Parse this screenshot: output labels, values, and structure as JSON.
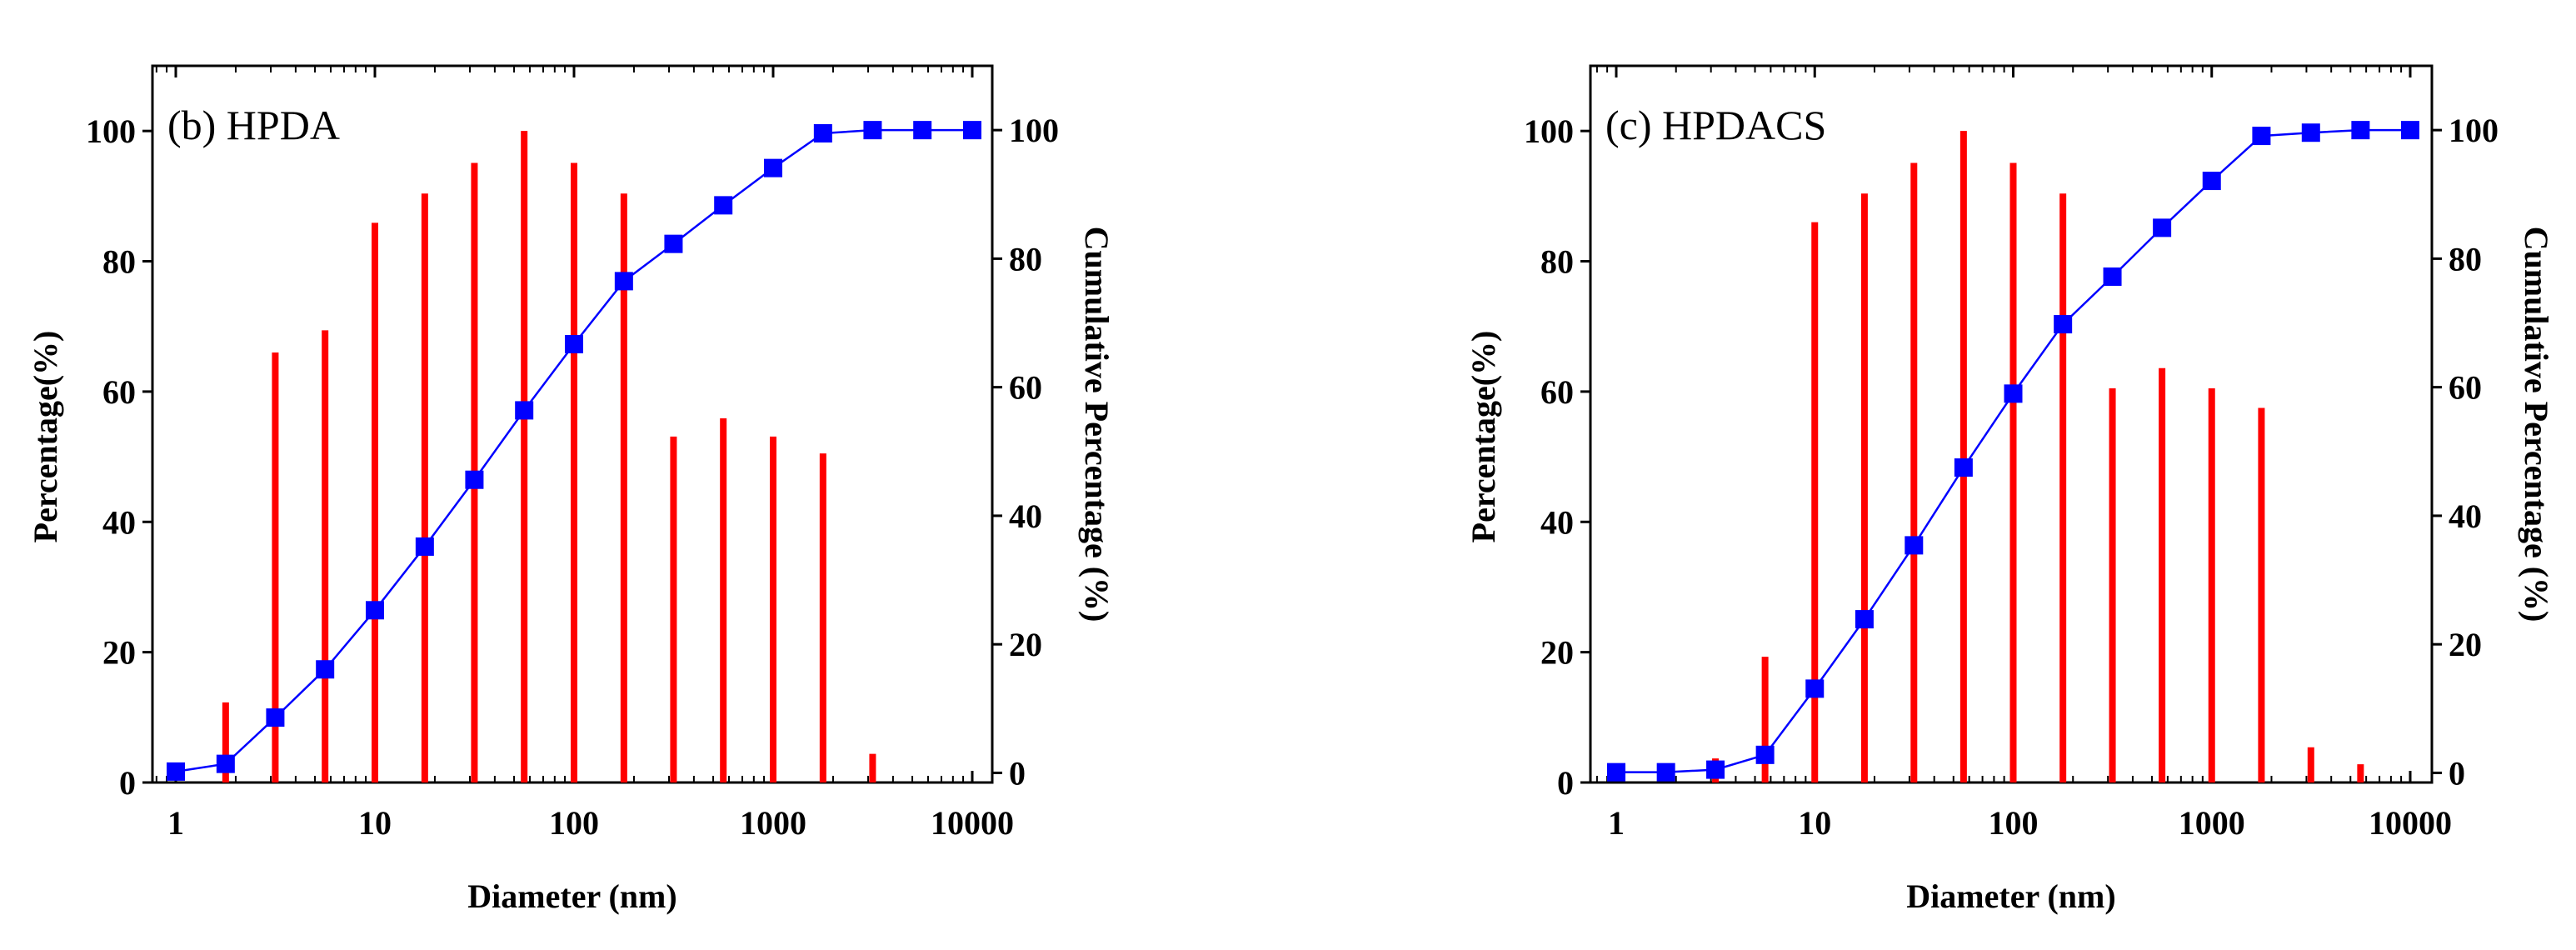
{
  "chart_data": [
    {
      "type": "bar+line",
      "title": "(b) HPDA",
      "xlabel": "Diameter (nm)",
      "ylabel": "Percentage(%)",
      "y2label": "Cumulative Percentage (%)",
      "xscale": "log",
      "xlim": [
        0.8,
        13000
      ],
      "ylim": [
        0,
        110
      ],
      "y2lim": [
        -1.5,
        110
      ],
      "xticks": [
        "1",
        "10",
        "100",
        "1000",
        "10000"
      ],
      "yticks": [
        "0",
        "20",
        "40",
        "60",
        "80",
        "100"
      ],
      "y2ticks": [
        "0",
        "20",
        "40",
        "60",
        "80",
        "100"
      ],
      "colors": {
        "bars": "#ff0000",
        "cumulative": "#0000ff"
      },
      "bars": {
        "x": [
          1.78,
          3.16,
          5.62,
          10,
          17.8,
          31.6,
          56.2,
          100,
          178,
          316,
          562,
          1000,
          1780,
          3160
        ],
        "values": [
          12.3,
          66,
          69.4,
          85.9,
          90.4,
          95.1,
          100,
          95.1,
          90.4,
          53.1,
          55.9,
          53.1,
          50.5,
          4.4
        ]
      },
      "cumulative": {
        "x": [
          1,
          1.78,
          3.16,
          5.62,
          10,
          17.8,
          31.6,
          56.2,
          100,
          178,
          316,
          562,
          1000,
          1780,
          3160,
          5620,
          10000
        ],
        "values": [
          0.2,
          1.4,
          8.6,
          16.1,
          25.3,
          35.2,
          45.6,
          56.4,
          66.7,
          76.5,
          82.3,
          88.3,
          94.1,
          99.5,
          100,
          100,
          100
        ]
      }
    },
    {
      "type": "bar+line",
      "title": "(c) HPDACS",
      "xlabel": "Diameter (nm)",
      "ylabel": "Percentage(%)",
      "y2label": "Cumulative Percentage (%)",
      "xscale": "log",
      "xlim": [
        0.8,
        13000
      ],
      "ylim": [
        0,
        110
      ],
      "y2lim": [
        -1.5,
        110
      ],
      "xticks": [
        "1",
        "10",
        "100",
        "1000",
        "10000"
      ],
      "yticks": [
        "0",
        "20",
        "40",
        "60",
        "80",
        "100"
      ],
      "y2ticks": [
        "0",
        "20",
        "40",
        "60",
        "80",
        "100"
      ],
      "colors": {
        "bars": "#ff0000",
        "cumulative": "#0000ff"
      },
      "bars": {
        "x": [
          3.16,
          5.62,
          10,
          17.8,
          31.6,
          56.2,
          100,
          178,
          316,
          562,
          1000,
          1780,
          3160,
          5620
        ],
        "values": [
          3.7,
          19.3,
          86,
          90.4,
          95.1,
          100,
          95.1,
          90.4,
          60.5,
          63.6,
          60.5,
          57.5,
          5.4,
          2.8
        ]
      },
      "cumulative": {
        "x": [
          1,
          1.78,
          3.16,
          5.62,
          10,
          17.8,
          31.6,
          56.2,
          100,
          178,
          316,
          562,
          1000,
          1780,
          3160,
          5620,
          10000
        ],
        "values": [
          0.1,
          0.1,
          0.5,
          2.8,
          13.1,
          23.9,
          35.4,
          47.5,
          59,
          69.8,
          77.2,
          84.8,
          92.1,
          99.1,
          99.6,
          100,
          100
        ]
      }
    }
  ]
}
